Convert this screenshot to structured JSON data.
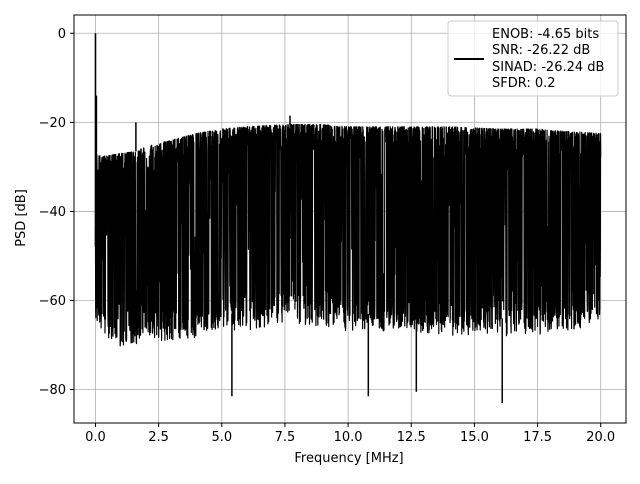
{
  "chart_data": {
    "type": "line",
    "xlabel": "Frequency [MHz]",
    "ylabel": "PSD [dB]",
    "xlim": [
      -0.85,
      21.0
    ],
    "ylim": [
      -87.5,
      4.1
    ],
    "xticks": [
      0.0,
      2.5,
      5.0,
      7.5,
      10.0,
      12.5,
      15.0,
      17.5,
      20.0
    ],
    "xtick_labels": [
      "0.0",
      "2.5",
      "5.0",
      "7.5",
      "10.0",
      "12.5",
      "15.0",
      "17.5",
      "20.0"
    ],
    "yticks": [
      0,
      -20,
      -40,
      -60,
      -80
    ],
    "ytick_labels": [
      "0",
      "−20",
      "−40",
      "−60",
      "−80"
    ],
    "grid": true,
    "legend_position": "top-right",
    "series": [
      {
        "name": "ENOB: -4.65 bits\nSNR: -26.22 dB\nSINAD: -26.24 dB\nSFDR: 0.2",
        "legend_lines": [
          "ENOB: -4.65 bits",
          "SNR: -26.22 dB",
          "SINAD: -26.24 dB",
          "SFDR: 0.2"
        ],
        "color": "#000000",
        "peak": {
          "x": 0.0,
          "y": 0.0
        },
        "upper_envelope": {
          "x": [
            0.0,
            0.1,
            0.5,
            1.0,
            1.6,
            2.0,
            3.0,
            4.0,
            5.0,
            6.0,
            7.5,
            9.0,
            10.0,
            12.0,
            14.0,
            16.0,
            17.5,
            18.5,
            20.0
          ],
          "y": [
            -27.0,
            -27.5,
            -27.5,
            -27.0,
            -26.5,
            -25.5,
            -24.0,
            -22.5,
            -21.5,
            -21.0,
            -20.5,
            -20.5,
            -21.0,
            -21.0,
            -21.0,
            -21.5,
            -21.5,
            -22.0,
            -22.5
          ]
        },
        "lower_envelope": {
          "x": [
            0.0,
            0.5,
            1.0,
            2.0,
            3.0,
            4.0,
            5.0,
            6.0,
            7.5,
            9.0,
            10.0,
            12.0,
            14.0,
            16.0,
            17.5,
            19.0,
            20.0
          ],
          "y": [
            -60.0,
            -65.0,
            -67.0,
            -65.0,
            -65.0,
            -65.0,
            -63.0,
            -63.0,
            -61.0,
            -62.0,
            -63.0,
            -63.0,
            -64.0,
            -64.0,
            -64.0,
            -63.0,
            -60.0
          ]
        },
        "noted_spikes": [
          {
            "x": 1.6,
            "y": -20.0
          },
          {
            "x": 7.7,
            "y": -18.5
          },
          {
            "x": 5.4,
            "y": -81.5
          },
          {
            "x": 10.8,
            "y": -81.5
          },
          {
            "x": 12.7,
            "y": -80.5
          },
          {
            "x": 16.1,
            "y": -83.0
          }
        ]
      }
    ]
  }
}
